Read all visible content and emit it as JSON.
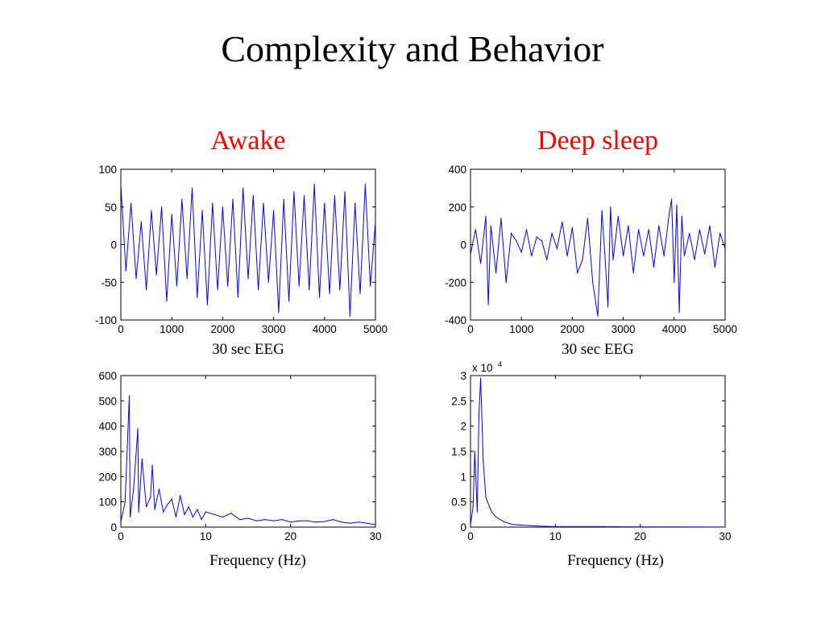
{
  "slide": {
    "title": "Complexity and Behavior",
    "left_heading": "Awake",
    "right_heading": "Deep sleep",
    "heading_color": "#ff0000",
    "line_color": "#0000ff"
  },
  "chart_data": [
    {
      "id": "awake-eeg",
      "type": "line",
      "xlabel": "30 sec EEG",
      "ylabel": "",
      "xlim": [
        0,
        5000
      ],
      "ylim": [
        -100,
        100
      ],
      "x_ticks": [
        "0",
        "1000",
        "2000",
        "3000",
        "4000",
        "5000"
      ],
      "y_ticks": [
        "100",
        "50",
        "0",
        "-50",
        "-100"
      ],
      "series": [
        {
          "x": [
            0,
            100,
            200,
            300,
            400,
            500,
            600,
            700,
            800,
            900,
            1000,
            1100,
            1200,
            1300,
            1400,
            1500,
            1600,
            1700,
            1800,
            1900,
            2000,
            2100,
            2200,
            2300,
            2400,
            2500,
            2600,
            2700,
            2800,
            2900,
            3000,
            3100,
            3200,
            3300,
            3400,
            3500,
            3600,
            3700,
            3800,
            3900,
            4000,
            4100,
            4200,
            4300,
            4400,
            4500,
            4600,
            4700,
            4800,
            4900,
            5000
          ],
          "y": [
            80,
            -35,
            55,
            -45,
            30,
            -60,
            45,
            -40,
            50,
            -75,
            40,
            -55,
            60,
            -45,
            75,
            -70,
            45,
            -80,
            55,
            -60,
            50,
            -55,
            60,
            -70,
            75,
            -45,
            65,
            -60,
            55,
            -50,
            45,
            -90,
            60,
            -75,
            70,
            -55,
            65,
            -60,
            80,
            -70,
            55,
            -65,
            65,
            -60,
            70,
            -95,
            55,
            -65,
            80,
            -55,
            30
          ]
        }
      ]
    },
    {
      "id": "deep-sleep-eeg",
      "type": "line",
      "xlabel": "30 sec EEG",
      "ylabel": "",
      "xlim": [
        0,
        5000
      ],
      "ylim": [
        -400,
        400
      ],
      "x_ticks": [
        "0",
        "1000",
        "2000",
        "3000",
        "4000",
        "5000"
      ],
      "y_ticks": [
        "400",
        "200",
        "0",
        "-200",
        "-400"
      ],
      "series": [
        {
          "x": [
            0,
            100,
            200,
            300,
            350,
            400,
            500,
            600,
            700,
            800,
            900,
            1000,
            1100,
            1200,
            1300,
            1400,
            1500,
            1600,
            1700,
            1800,
            1900,
            2000,
            2100,
            2200,
            2300,
            2400,
            2500,
            2580,
            2650,
            2700,
            2750,
            2800,
            2900,
            3000,
            3100,
            3200,
            3300,
            3400,
            3500,
            3600,
            3700,
            3800,
            3900,
            3950,
            4000,
            4050,
            4100,
            4150,
            4200,
            4300,
            4400,
            4500,
            4600,
            4700,
            4800,
            4900,
            5000
          ],
          "y": [
            -50,
            80,
            -100,
            150,
            -320,
            100,
            -150,
            140,
            -200,
            60,
            20,
            -40,
            80,
            -60,
            40,
            20,
            -80,
            60,
            -20,
            120,
            -60,
            90,
            -150,
            -80,
            140,
            -200,
            -380,
            180,
            -100,
            -330,
            200,
            -80,
            150,
            -60,
            100,
            -150,
            80,
            -60,
            80,
            -120,
            100,
            -60,
            160,
            240,
            -200,
            210,
            -360,
            150,
            -60,
            60,
            -80,
            80,
            -50,
            100,
            -120,
            60,
            -20
          ]
        }
      ]
    },
    {
      "id": "awake-spectrum",
      "type": "line",
      "xlabel": "Frequency (Hz)",
      "ylabel": "",
      "xlim": [
        0,
        30
      ],
      "ylim": [
        0,
        600
      ],
      "x_ticks": [
        "0",
        "10",
        "20",
        "30"
      ],
      "y_ticks": [
        "600",
        "500",
        "400",
        "300",
        "200",
        "100",
        "0"
      ],
      "series": [
        {
          "x": [
            0,
            0.5,
            1,
            1.1,
            1.5,
            2,
            2.1,
            2.5,
            3,
            3.5,
            3.7,
            4,
            4.5,
            5,
            5.5,
            6,
            6.5,
            7,
            7.5,
            8,
            8.5,
            9,
            9.5,
            10,
            11,
            12,
            13,
            14,
            15,
            16,
            17,
            18,
            19,
            20,
            21,
            22,
            23,
            24,
            25,
            26,
            27,
            28,
            29,
            30
          ],
          "y": [
            20,
            100,
            520,
            40,
            150,
            390,
            60,
            270,
            80,
            120,
            245,
            70,
            150,
            60,
            90,
            110,
            40,
            125,
            50,
            80,
            40,
            70,
            30,
            60,
            50,
            40,
            55,
            30,
            35,
            25,
            30,
            25,
            30,
            20,
            25,
            25,
            20,
            22,
            30,
            20,
            15,
            20,
            15,
            10
          ]
        }
      ]
    },
    {
      "id": "deep-sleep-spectrum",
      "type": "line",
      "xlabel": "Frequency (Hz)",
      "ylabel": "",
      "xlim": [
        0,
        30
      ],
      "ylim": [
        0,
        3
      ],
      "y_multiplier": "x 10",
      "y_multiplier_exponent": "4",
      "x_ticks": [
        "0",
        "10",
        "20",
        "30"
      ],
      "y_ticks": [
        "3",
        "2.5",
        "2",
        "1.5",
        "1",
        "0.5",
        "0"
      ],
      "series": [
        {
          "x": [
            0,
            0.3,
            0.5,
            0.8,
            1,
            1.2,
            1.5,
            1.8,
            2,
            2.5,
            3,
            3.5,
            4,
            5,
            6,
            7,
            8,
            10,
            15,
            20,
            25,
            30
          ],
          "y": [
            0.05,
            0.4,
            1.5,
            0.3,
            2.25,
            2.95,
            1.3,
            0.6,
            0.5,
            0.3,
            0.2,
            0.15,
            0.1,
            0.05,
            0.04,
            0.03,
            0.02,
            0.01,
            0.01,
            0.005,
            0.003,
            0.002
          ]
        }
      ]
    }
  ]
}
